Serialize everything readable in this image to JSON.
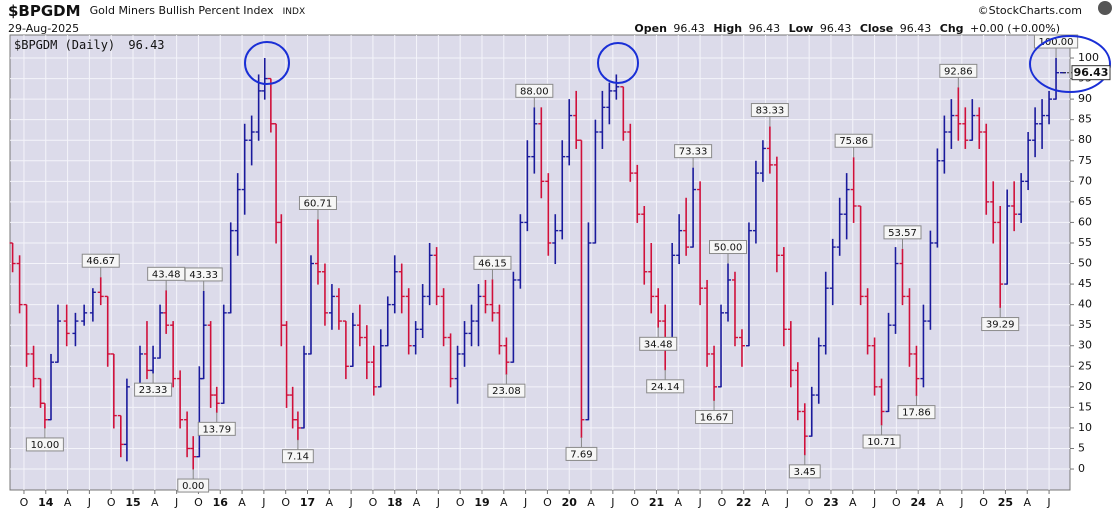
{
  "chart_data": {
    "type": "ohlc",
    "title": "$BPGDM",
    "subtitle": "Gold Miners Bullish Percent Index",
    "exchange": "INDX",
    "date": "29-Aug-2025",
    "source": "©StockCharts.com",
    "legend_label": "$BPGDM (Daily)",
    "stat_labels": [
      "Open",
      "High",
      "Low",
      "Close",
      "Chg"
    ],
    "change": "+0.00 (+0.00%)",
    "up_color": "#1a1a9c",
    "down_color": "#d0103a",
    "grid": true,
    "xlim": [
      2013.59,
      2025.74
    ],
    "ylim": [
      -5.1,
      105.6
    ],
    "yticks": [
      0,
      5,
      10,
      15,
      20,
      25,
      30,
      35,
      40,
      45,
      50,
      55,
      60,
      65,
      70,
      75,
      80,
      85,
      90,
      95,
      100
    ],
    "xticks": [
      {
        "value": 2013.75,
        "label": "O"
      },
      {
        "value": 2014,
        "label": "14"
      },
      {
        "value": 2014.25,
        "label": "A"
      },
      {
        "value": 2014.5,
        "label": "J"
      },
      {
        "value": 2014.75,
        "label": "O"
      },
      {
        "value": 2015,
        "label": "15"
      },
      {
        "value": 2015.25,
        "label": "A"
      },
      {
        "value": 2015.5,
        "label": "J"
      },
      {
        "value": 2015.75,
        "label": "O"
      },
      {
        "value": 2016,
        "label": "16"
      },
      {
        "value": 2016.25,
        "label": "A"
      },
      {
        "value": 2016.5,
        "label": "J"
      },
      {
        "value": 2016.75,
        "label": "O"
      },
      {
        "value": 2017,
        "label": "17"
      },
      {
        "value": 2017.25,
        "label": "A"
      },
      {
        "value": 2017.5,
        "label": "J"
      },
      {
        "value": 2017.75,
        "label": "O"
      },
      {
        "value": 2018,
        "label": "18"
      },
      {
        "value": 2018.25,
        "label": "A"
      },
      {
        "value": 2018.5,
        "label": "J"
      },
      {
        "value": 2018.75,
        "label": "O"
      },
      {
        "value": 2019,
        "label": "19"
      },
      {
        "value": 2019.25,
        "label": "A"
      },
      {
        "value": 2019.5,
        "label": "J"
      },
      {
        "value": 2019.75,
        "label": "O"
      },
      {
        "value": 2020,
        "label": "20"
      },
      {
        "value": 2020.25,
        "label": "A"
      },
      {
        "value": 2020.5,
        "label": "J"
      },
      {
        "value": 2020.75,
        "label": "O"
      },
      {
        "value": 2021,
        "label": "21"
      },
      {
        "value": 2021.25,
        "label": "A"
      },
      {
        "value": 2021.5,
        "label": "J"
      },
      {
        "value": 2021.75,
        "label": "O"
      },
      {
        "value": 2022,
        "label": "22"
      },
      {
        "value": 2022.25,
        "label": "A"
      },
      {
        "value": 2022.5,
        "label": "J"
      },
      {
        "value": 2022.75,
        "label": "O"
      },
      {
        "value": 2023,
        "label": "23"
      },
      {
        "value": 2023.25,
        "label": "A"
      },
      {
        "value": 2023.5,
        "label": "J"
      },
      {
        "value": 2023.75,
        "label": "O"
      },
      {
        "value": 2024,
        "label": "24"
      },
      {
        "value": 2024.25,
        "label": "A"
      },
      {
        "value": 2024.5,
        "label": "J"
      },
      {
        "value": 2024.75,
        "label": "O"
      },
      {
        "value": 2025,
        "label": "25"
      },
      {
        "value": 2025.25,
        "label": "A"
      },
      {
        "value": 2025.5,
        "label": "J"
      }
    ],
    "x": [
      2013.62,
      2013.7,
      2013.78,
      2013.86,
      2013.94,
      2013.99,
      2014.06,
      2014.14,
      2014.24,
      2014.34,
      2014.44,
      2014.54,
      2014.63,
      2014.71,
      2014.78,
      2014.86,
      2014.93,
      2015.08,
      2015.16,
      2015.23,
      2015.31,
      2015.38,
      2015.46,
      2015.54,
      2015.62,
      2015.69,
      2015.76,
      2015.81,
      2015.89,
      2015.96,
      2016.04,
      2016.12,
      2016.2,
      2016.28,
      2016.36,
      2016.44,
      2016.51,
      2016.58,
      2016.64,
      2016.7,
      2016.76,
      2016.83,
      2016.89,
      2016.96,
      2017.04,
      2017.12,
      2017.2,
      2017.28,
      2017.36,
      2017.44,
      2017.52,
      2017.6,
      2017.68,
      2017.76,
      2017.84,
      2017.92,
      2018.0,
      2018.08,
      2018.16,
      2018.24,
      2018.32,
      2018.4,
      2018.48,
      2018.56,
      2018.64,
      2018.72,
      2018.8,
      2018.88,
      2018.96,
      2019.04,
      2019.12,
      2019.2,
      2019.28,
      2019.36,
      2019.44,
      2019.52,
      2019.6,
      2019.68,
      2019.76,
      2019.84,
      2019.92,
      2020.0,
      2020.08,
      2020.14,
      2020.22,
      2020.3,
      2020.38,
      2020.46,
      2020.54,
      2020.62,
      2020.7,
      2020.78,
      2020.86,
      2020.94,
      2021.02,
      2021.1,
      2021.18,
      2021.26,
      2021.34,
      2021.42,
      2021.5,
      2021.58,
      2021.66,
      2021.74,
      2021.82,
      2021.9,
      2021.98,
      2022.06,
      2022.14,
      2022.22,
      2022.3,
      2022.38,
      2022.46,
      2022.54,
      2022.62,
      2022.7,
      2022.78,
      2022.86,
      2022.94,
      2023.02,
      2023.1,
      2023.18,
      2023.26,
      2023.34,
      2023.42,
      2023.5,
      2023.58,
      2023.66,
      2023.74,
      2023.82,
      2023.9,
      2023.98,
      2024.06,
      2024.14,
      2024.22,
      2024.3,
      2024.38,
      2024.46,
      2024.54,
      2024.62,
      2024.7,
      2024.78,
      2024.86,
      2024.94,
      2025.02,
      2025.1,
      2025.18,
      2025.26,
      2025.34,
      2025.42,
      2025.5,
      2025.58,
      2025.66
    ],
    "open": [
      55,
      50,
      40,
      28,
      22,
      16,
      12,
      26,
      36,
      33,
      36,
      38,
      43,
      42,
      28,
      13,
      6,
      20,
      28,
      24,
      27,
      38,
      35,
      22,
      12,
      5,
      3,
      22,
      35,
      18,
      16,
      38,
      58,
      68,
      80,
      82,
      92,
      95,
      84,
      60,
      35,
      18,
      12,
      10,
      28,
      50,
      48,
      38,
      42,
      36,
      25,
      35,
      32,
      26,
      20,
      30,
      40,
      48,
      42,
      30,
      34,
      42,
      52,
      42,
      32,
      22,
      28,
      33,
      36,
      42,
      40,
      38,
      30,
      26,
      46,
      60,
      76,
      84,
      70,
      55,
      58,
      76,
      86,
      80,
      12,
      55,
      82,
      88,
      92,
      93,
      82,
      72,
      62,
      48,
      42,
      36,
      30,
      52,
      58,
      54,
      68,
      44,
      28,
      20,
      38,
      46,
      32,
      30,
      58,
      72,
      78,
      74,
      52,
      34,
      24,
      14,
      8,
      18,
      30,
      44,
      54,
      62,
      68,
      64,
      42,
      30,
      20,
      14,
      35,
      50,
      42,
      28,
      22,
      36,
      55,
      75,
      82,
      86,
      84,
      80,
      86,
      82,
      65,
      60,
      45,
      64,
      62,
      70,
      80,
      84,
      86,
      90,
      96.43
    ],
    "high": [
      55,
      52,
      40,
      30,
      22,
      16,
      28,
      40,
      40,
      38,
      40,
      44,
      46.67,
      42,
      28,
      13,
      22,
      30,
      36,
      30,
      40,
      43.48,
      36,
      24,
      14,
      8,
      25,
      43.33,
      36,
      20,
      40,
      60,
      72,
      84,
      86,
      96,
      100,
      95,
      84,
      62,
      36,
      20,
      14,
      30,
      52,
      60.71,
      50,
      45,
      44,
      36,
      38,
      40,
      35,
      30,
      34,
      42,
      52,
      50,
      44,
      36,
      45,
      55,
      54,
      44,
      33,
      30,
      36,
      40,
      45,
      46,
      46.15,
      40,
      32,
      48,
      62,
      80,
      88,
      88,
      72,
      62,
      80,
      90,
      92,
      80,
      60,
      85,
      92,
      94,
      96,
      93,
      84,
      74,
      64,
      55,
      44,
      40,
      55,
      62,
      66,
      73.33,
      70,
      46,
      30,
      40,
      50,
      48,
      34,
      60,
      75,
      80,
      83.33,
      76,
      54,
      36,
      26,
      16,
      20,
      32,
      48,
      56,
      66,
      72,
      75.86,
      64,
      44,
      32,
      22,
      38,
      54,
      53.57,
      44,
      30,
      40,
      58,
      78,
      86,
      90,
      92.86,
      88,
      90,
      88,
      84,
      70,
      64,
      68,
      70,
      72,
      82,
      88,
      90,
      92,
      100,
      96.43
    ],
    "low": [
      48,
      38,
      25,
      20,
      15,
      10,
      12,
      26,
      30,
      30,
      35,
      36,
      40,
      25,
      10,
      3,
      2,
      20,
      22,
      23.33,
      27,
      33,
      20,
      10,
      3,
      0,
      3,
      22,
      15,
      13.79,
      16,
      38,
      52,
      62,
      74,
      80,
      90,
      82,
      55,
      30,
      15,
      10,
      7.14,
      10,
      28,
      45,
      35,
      34,
      34,
      22,
      25,
      30,
      22,
      18,
      20,
      30,
      38,
      38,
      28,
      28,
      32,
      40,
      40,
      30,
      20,
      16,
      25,
      30,
      30,
      38,
      36,
      28,
      23.08,
      26,
      44,
      58,
      72,
      66,
      52,
      50,
      56,
      74,
      78,
      7.69,
      12,
      55,
      78,
      84,
      90,
      80,
      70,
      60,
      45,
      38,
      34.48,
      24.14,
      30,
      50,
      52,
      54,
      40,
      25,
      16.67,
      20,
      36,
      30,
      25,
      30,
      55,
      70,
      72,
      48,
      30,
      20,
      12,
      3.45,
      8,
      16,
      28,
      40,
      52,
      56,
      60,
      40,
      28,
      18,
      10.71,
      14,
      33,
      40,
      25,
      17.86,
      20,
      34,
      54,
      72,
      78,
      80,
      78,
      80,
      78,
      62,
      55,
      39.29,
      45,
      58,
      60,
      68,
      76,
      78,
      84,
      90,
      96.43
    ],
    "close": [
      50,
      40,
      28,
      22,
      16,
      12,
      26,
      36,
      33,
      36,
      38,
      43,
      42,
      28,
      13,
      6,
      20,
      28,
      24,
      27,
      38,
      35,
      22,
      12,
      5,
      3,
      22,
      35,
      18,
      16,
      38,
      58,
      68,
      80,
      82,
      92,
      95,
      84,
      60,
      35,
      18,
      12,
      10,
      28,
      50,
      48,
      38,
      42,
      36,
      25,
      35,
      32,
      26,
      20,
      30,
      40,
      48,
      42,
      30,
      34,
      42,
      52,
      42,
      32,
      22,
      28,
      33,
      36,
      42,
      40,
      38,
      30,
      26,
      46,
      60,
      76,
      84,
      70,
      55,
      58,
      76,
      86,
      80,
      12,
      55,
      82,
      88,
      92,
      93,
      82,
      72,
      62,
      48,
      42,
      36,
      30,
      52,
      58,
      54,
      68,
      44,
      28,
      20,
      38,
      46,
      32,
      30,
      58,
      72,
      78,
      74,
      52,
      34,
      24,
      14,
      8,
      18,
      30,
      44,
      54,
      62,
      68,
      64,
      42,
      30,
      20,
      14,
      35,
      50,
      42,
      28,
      22,
      36,
      55,
      75,
      82,
      86,
      84,
      80,
      86,
      82,
      65,
      60,
      45,
      64,
      62,
      70,
      80,
      84,
      86,
      90,
      96.43,
      96.43
    ],
    "annotations": {
      "x": [
        2013.99,
        2014.63,
        2015.23,
        2015.38,
        2015.69,
        2015.81,
        2015.96,
        2016.89,
        2017.12,
        2019.12,
        2019.28,
        2019.6,
        2020.14,
        2021.02,
        2021.1,
        2021.42,
        2021.66,
        2021.82,
        2022.3,
        2022.7,
        2023.26,
        2023.58,
        2023.82,
        2023.98,
        2024.46,
        2024.94,
        2025.58
      ],
      "values": [
        10,
        46.67,
        23.33,
        43.48,
        0,
        43.33,
        13.79,
        7.14,
        60.71,
        46.15,
        23.08,
        88,
        7.69,
        34.48,
        24.14,
        73.33,
        16.67,
        50,
        83.33,
        3.45,
        75.86,
        10.71,
        53.57,
        17.86,
        92.86,
        39.29,
        100
      ],
      "value_labels": [
        "10.00",
        "46.67",
        "23.33",
        "43.48",
        "0.00",
        "43.33",
        "13.79",
        "7.14",
        "60.71",
        "46.15",
        "23.08",
        "88.00",
        "7.69",
        "34.48",
        "24.14",
        "73.33",
        "16.67",
        "50.00",
        "83.33",
        "3.45",
        "75.86",
        "10.71",
        "53.57",
        "17.86",
        "92.86",
        "39.29",
        "100.00"
      ]
    }
  }
}
